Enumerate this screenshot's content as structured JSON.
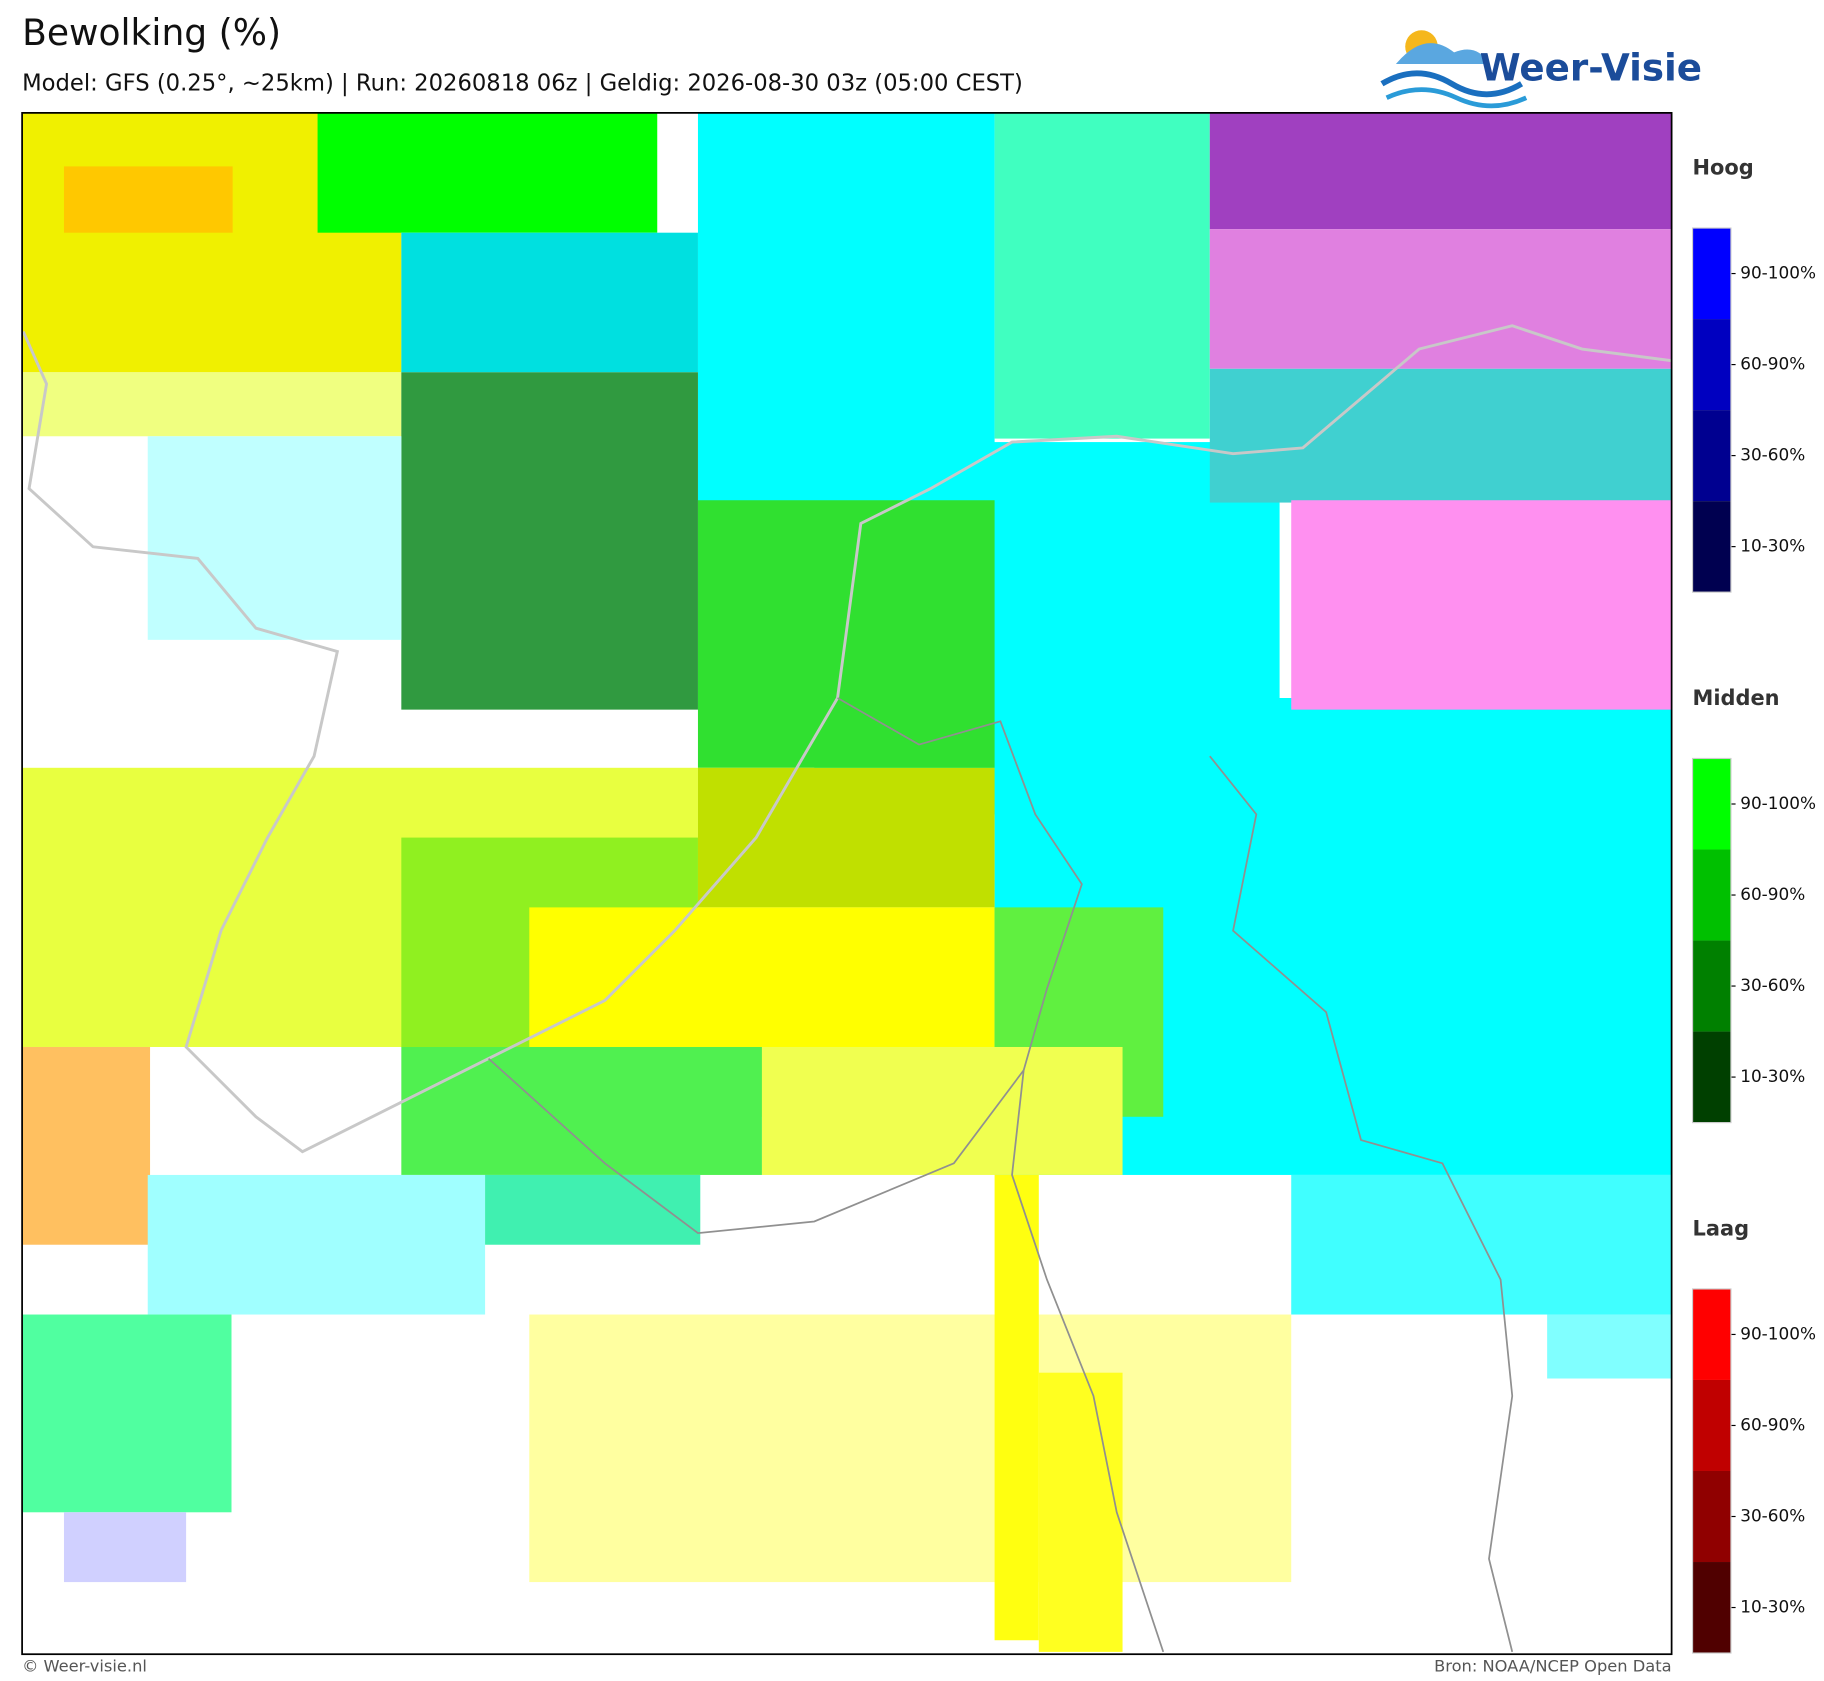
{
  "header": {
    "title": "Bewolking (%)",
    "subtitle": "Model: GFS (0.25°, ~25km)  |  Run: 20260818 06z  |  Geldig: 2026-08-30 03z (05:00 CEST)"
  },
  "logo": {
    "text": "Weer-Visie"
  },
  "legend": {
    "groups": [
      {
        "title": "Hoog",
        "labels": [
          "90-100%",
          "60-90%",
          "30-60%",
          "10-30%"
        ]
      },
      {
        "title": "Midden",
        "labels": [
          "90-100%",
          "60-90%",
          "30-60%",
          "10-30%"
        ]
      },
      {
        "title": "Laag",
        "labels": [
          "90-100%",
          "60-90%",
          "30-60%",
          "10-30%"
        ]
      }
    ]
  },
  "footer": {
    "left": "© Weer-visie.nl",
    "right": "Bron: NOAA/NCEP Open Data"
  }
}
